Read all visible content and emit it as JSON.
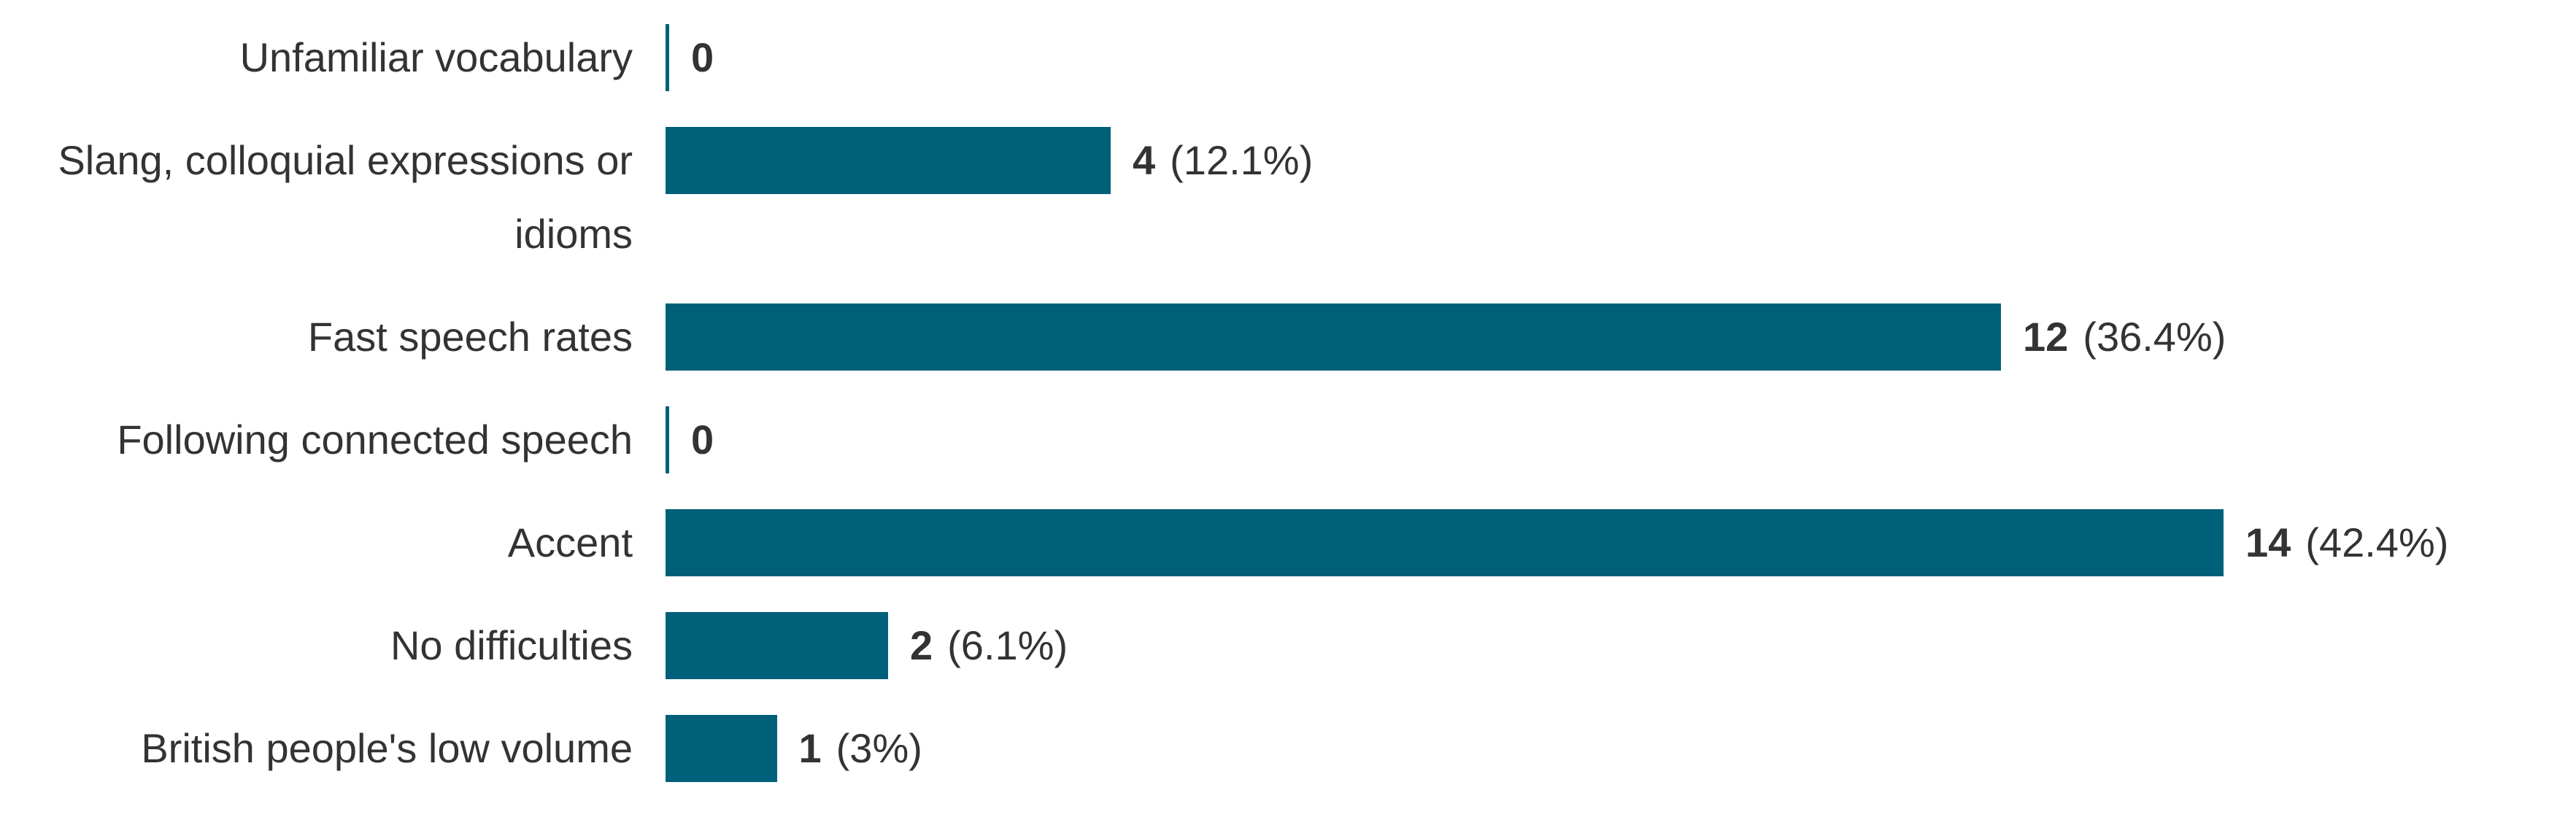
{
  "chart_data": {
    "type": "bar",
    "orientation": "horizontal",
    "color": "#006079",
    "categories": [
      "Unfamiliar vocabulary",
      "Slang, colloquial expressions or idioms",
      "Fast speech rates",
      "Following connected speech",
      "Accent",
      "No difficulties",
      "British people's low volume"
    ],
    "values": [
      0,
      4,
      12,
      0,
      14,
      2,
      1
    ],
    "percent_labels": [
      null,
      "(12.1%)",
      "(36.4%)",
      null,
      "(42.4%)",
      "(6.1%)",
      "(3%)"
    ]
  }
}
